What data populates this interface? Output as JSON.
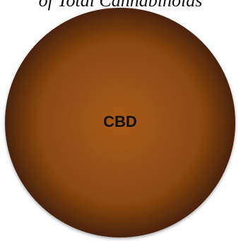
{
  "chart_data": {
    "type": "pie",
    "title": "of Total Cannabinoids",
    "categories": [
      "CBD"
    ],
    "values": [
      100
    ],
    "colors": [
      "#b5651d"
    ],
    "legend": "none"
  }
}
